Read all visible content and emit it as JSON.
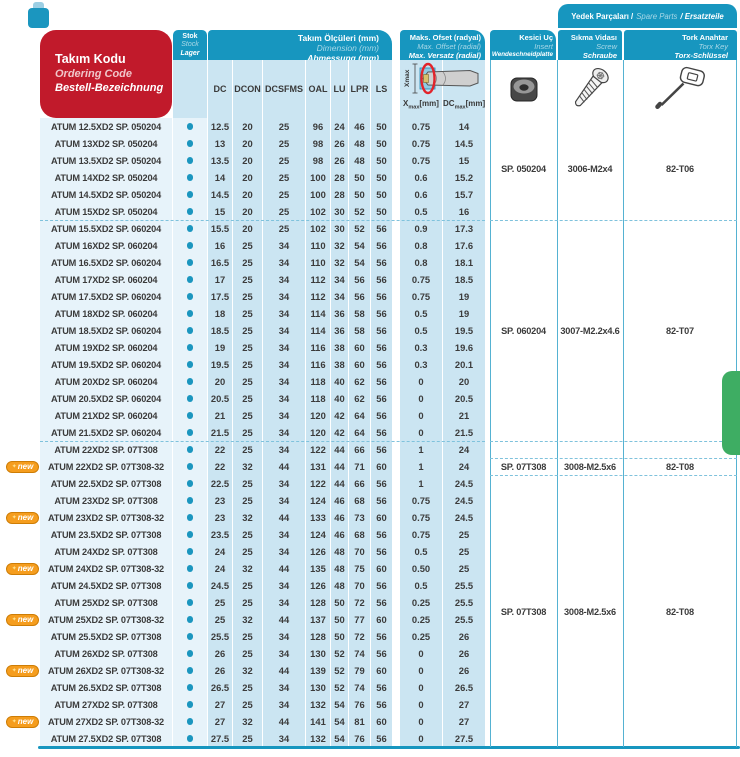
{
  "header": {
    "code_col": {
      "line1": "Takım Kodu",
      "line2": "Ordering Code",
      "line3": "Bestell-Bezeichnung"
    },
    "stock_col": {
      "line1": "Stok",
      "line2": "Stock",
      "line3": "Lager"
    },
    "dims_col": {
      "line1": "Takım Ölçüleri (mm)",
      "line2": "Dimension (mm)",
      "line3": "Abmessung (mm)"
    },
    "dim_columns": [
      "DC",
      "DCON",
      "DCSFMS",
      "OAL",
      "LU",
      "LPR",
      "LS"
    ],
    "offset_col": {
      "line1": "Maks. Ofset (radyal)",
      "line2": "Max. Offset (radial)",
      "line3": "Max. Versatz (radial)",
      "x_label": "X",
      "x_sub": "max",
      "x_unit": "[mm]",
      "dc_label": "DC",
      "dc_sub": "max",
      "dc_unit": "[mm]"
    },
    "spare_bar": {
      "tr": "Yedek Parçaları /",
      "en": "Spare Parts",
      "de": "/ Ersatzteile"
    },
    "insert_col": {
      "line1": "Kesici Uç",
      "line2": "Insert",
      "line3": "Wendeschneidplatte"
    },
    "screw_col": {
      "line1": "Sıkma Vidası",
      "line2": "Screw",
      "line3": "Schraube"
    },
    "torx_col": {
      "line1": "Tork Anahtar",
      "line2": "Torx Key",
      "line3": "Torx-Schlüssel"
    }
  },
  "badge_label": "new",
  "colors": {
    "teal": "#1796BF",
    "red": "#C11A2B",
    "green": "#3EAD63",
    "badge_orange": "#F59D1E",
    "stripe_blue": "#CBE5F2",
    "stripe_light": "#E7F3FA"
  },
  "table": {
    "groups": [
      {
        "spare": {
          "insert": "SP. 050204",
          "screw": "3006-M2x4",
          "torx": "82-T06"
        },
        "rows": [
          {
            "code": "ATUM 12.5XD2 SP. 050204",
            "new": false,
            "v": [
              "12.5",
              "20",
              "25",
              "96",
              "24",
              "46",
              "50",
              "0.75",
              "14"
            ]
          },
          {
            "code": "ATUM 13XD2 SP. 050204",
            "new": false,
            "v": [
              "13",
              "20",
              "25",
              "98",
              "26",
              "48",
              "50",
              "0.75",
              "14.5"
            ]
          },
          {
            "code": "ATUM 13.5XD2 SP. 050204",
            "new": false,
            "v": [
              "13.5",
              "20",
              "25",
              "98",
              "26",
              "48",
              "50",
              "0.75",
              "15"
            ]
          },
          {
            "code": "ATUM 14XD2 SP. 050204",
            "new": false,
            "v": [
              "14",
              "20",
              "25",
              "100",
              "28",
              "50",
              "50",
              "0.6",
              "15.2"
            ]
          },
          {
            "code": "ATUM 14.5XD2 SP. 050204",
            "new": false,
            "v": [
              "14.5",
              "20",
              "25",
              "100",
              "28",
              "50",
              "50",
              "0.6",
              "15.7"
            ]
          },
          {
            "code": "ATUM 15XD2 SP. 050204",
            "new": false,
            "v": [
              "15",
              "20",
              "25",
              "102",
              "30",
              "52",
              "50",
              "0.5",
              "16"
            ]
          }
        ]
      },
      {
        "spare": {
          "insert": "SP. 060204",
          "screw": "3007-M2.2x4.6",
          "torx": "82-T07"
        },
        "rows": [
          {
            "code": "ATUM 15.5XD2 SP. 060204",
            "new": false,
            "v": [
              "15.5",
              "20",
              "25",
              "102",
              "30",
              "52",
              "56",
              "0.9",
              "17.3"
            ]
          },
          {
            "code": "ATUM 16XD2 SP. 060204",
            "new": false,
            "v": [
              "16",
              "25",
              "34",
              "110",
              "32",
              "54",
              "56",
              "0.8",
              "17.6"
            ]
          },
          {
            "code": "ATUM 16.5XD2 SP. 060204",
            "new": false,
            "v": [
              "16.5",
              "25",
              "34",
              "110",
              "32",
              "54",
              "56",
              "0.8",
              "18.1"
            ]
          },
          {
            "code": "ATUM 17XD2 SP. 060204",
            "new": false,
            "v": [
              "17",
              "25",
              "34",
              "112",
              "34",
              "56",
              "56",
              "0.75",
              "18.5"
            ]
          },
          {
            "code": "ATUM 17.5XD2 SP. 060204",
            "new": false,
            "v": [
              "17.5",
              "25",
              "34",
              "112",
              "34",
              "56",
              "56",
              "0.75",
              "19"
            ]
          },
          {
            "code": "ATUM 18XD2 SP. 060204",
            "new": false,
            "v": [
              "18",
              "25",
              "34",
              "114",
              "36",
              "58",
              "56",
              "0.5",
              "19"
            ]
          },
          {
            "code": "ATUM 18.5XD2 SP. 060204",
            "new": false,
            "v": [
              "18.5",
              "25",
              "34",
              "114",
              "36",
              "58",
              "56",
              "0.5",
              "19.5"
            ]
          },
          {
            "code": "ATUM 19XD2 SP. 060204",
            "new": false,
            "v": [
              "19",
              "25",
              "34",
              "116",
              "38",
              "60",
              "56",
              "0.3",
              "19.6"
            ]
          },
          {
            "code": "ATUM 19.5XD2 SP. 060204",
            "new": false,
            "v": [
              "19.5",
              "25",
              "34",
              "116",
              "38",
              "60",
              "56",
              "0.3",
              "20.1"
            ]
          },
          {
            "code": "ATUM 20XD2 SP. 060204",
            "new": false,
            "v": [
              "20",
              "25",
              "34",
              "118",
              "40",
              "62",
              "56",
              "0",
              "20"
            ]
          },
          {
            "code": "ATUM 20.5XD2 SP. 060204",
            "new": false,
            "v": [
              "20.5",
              "25",
              "34",
              "118",
              "40",
              "62",
              "56",
              "0",
              "20.5"
            ]
          },
          {
            "code": "ATUM 21XD2 SP. 060204",
            "new": false,
            "v": [
              "21",
              "25",
              "34",
              "120",
              "42",
              "64",
              "56",
              "0",
              "21"
            ]
          },
          {
            "code": "ATUM 21.5XD2 SP. 060204",
            "new": false,
            "v": [
              "21.5",
              "25",
              "34",
              "120",
              "42",
              "64",
              "56",
              "0",
              "21.5"
            ]
          }
        ]
      },
      {
        "spare": {
          "insert": "SP. 07T308",
          "screw": "3008-M2.5x6",
          "torx": "82-T08"
        },
        "rows": [
          {
            "code": "ATUM 22XD2 SP. 07T308",
            "new": false,
            "v": [
              "22",
              "25",
              "34",
              "122",
              "44",
              "66",
              "56",
              "1",
              "24"
            ]
          },
          {
            "code": "ATUM 22XD2 SP. 07T308-32",
            "new": true,
            "v": [
              "22",
              "32",
              "44",
              "131",
              "44",
              "71",
              "60",
              "1",
              "24"
            ]
          },
          {
            "code": "ATUM 22.5XD2 SP. 07T308",
            "new": false,
            "v": [
              "22.5",
              "25",
              "34",
              "122",
              "44",
              "66",
              "56",
              "1",
              "24.5"
            ]
          },
          {
            "code": "ATUM 23XD2 SP. 07T308",
            "new": false,
            "v": [
              "23",
              "25",
              "34",
              "124",
              "46",
              "68",
              "56",
              "0.75",
              "24.5"
            ]
          },
          {
            "code": "ATUM 23XD2 SP. 07T308-32",
            "new": true,
            "v": [
              "23",
              "32",
              "44",
              "133",
              "46",
              "73",
              "60",
              "0.75",
              "24.5"
            ]
          },
          {
            "code": "ATUM 23.5XD2 SP. 07T308",
            "new": false,
            "v": [
              "23.5",
              "25",
              "34",
              "124",
              "46",
              "68",
              "56",
              "0.75",
              "25"
            ]
          },
          {
            "code": "ATUM 24XD2 SP. 07T308",
            "new": false,
            "v": [
              "24",
              "25",
              "34",
              "126",
              "48",
              "70",
              "56",
              "0.5",
              "25"
            ]
          },
          {
            "code": "ATUM 24XD2 SP. 07T308-32",
            "new": true,
            "v": [
              "24",
              "32",
              "44",
              "135",
              "48",
              "75",
              "60",
              "0.50",
              "25"
            ]
          },
          {
            "code": "ATUM 24.5XD2 SP. 07T308",
            "new": false,
            "v": [
              "24.5",
              "25",
              "34",
              "126",
              "48",
              "70",
              "56",
              "0.5",
              "25.5"
            ]
          },
          {
            "code": "ATUM 25XD2 SP. 07T308",
            "new": false,
            "v": [
              "25",
              "25",
              "34",
              "128",
              "50",
              "72",
              "56",
              "0.25",
              "25.5"
            ]
          },
          {
            "code": "ATUM 25XD2 SP. 07T308-32",
            "new": true,
            "v": [
              "25",
              "32",
              "44",
              "137",
              "50",
              "77",
              "60",
              "0.25",
              "25.5"
            ]
          },
          {
            "code": "ATUM 25.5XD2 SP. 07T308",
            "new": false,
            "v": [
              "25.5",
              "25",
              "34",
              "128",
              "50",
              "72",
              "56",
              "0.25",
              "26"
            ]
          },
          {
            "code": "ATUM 26XD2 SP. 07T308",
            "new": false,
            "v": [
              "26",
              "25",
              "34",
              "130",
              "52",
              "74",
              "56",
              "0",
              "26"
            ]
          },
          {
            "code": "ATUM 26XD2 SP. 07T308-32",
            "new": true,
            "v": [
              "26",
              "32",
              "44",
              "139",
              "52",
              "79",
              "60",
              "0",
              "26"
            ]
          },
          {
            "code": "ATUM 26.5XD2 SP. 07T308",
            "new": false,
            "v": [
              "26.5",
              "25",
              "34",
              "130",
              "52",
              "74",
              "56",
              "0",
              "26.5"
            ]
          },
          {
            "code": "ATUM 27XD2 SP. 07T308",
            "new": false,
            "v": [
              "27",
              "25",
              "34",
              "132",
              "54",
              "76",
              "56",
              "0",
              "27"
            ]
          },
          {
            "code": "ATUM 27XD2 SP. 07T308-32",
            "new": true,
            "v": [
              "27",
              "32",
              "44",
              "141",
              "54",
              "81",
              "60",
              "0",
              "27"
            ]
          },
          {
            "code": "ATUM 27.5XD2 SP. 07T308",
            "new": false,
            "v": [
              "27.5",
              "25",
              "34",
              "132",
              "54",
              "76",
              "56",
              "0",
              "27.5"
            ]
          }
        ]
      }
    ],
    "spare_layout": [
      {
        "group": 0,
        "from": 0,
        "to": 5,
        "show": true
      },
      {
        "group": 1,
        "from": 6,
        "to": 18,
        "show": true
      },
      {
        "group": 2,
        "from": 19,
        "to": 19,
        "show": false
      },
      {
        "group": 2,
        "from": 20,
        "to": 20,
        "show": true
      },
      {
        "group": 2,
        "from": 21,
        "to": 36,
        "show": true
      }
    ]
  }
}
